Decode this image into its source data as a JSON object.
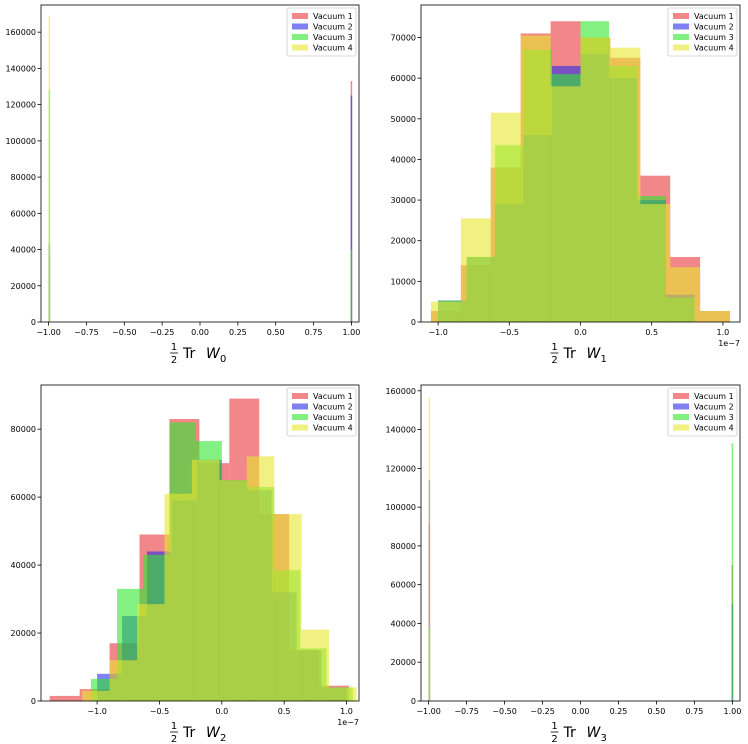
{
  "colors": {
    "Vacuum 1": "#e8373b",
    "Vacuum 2": "#2b2be8",
    "Vacuum 3": "#2fe82f",
    "Vacuum 4": "#e8e82f"
  },
  "chart_data": [
    {
      "type": "bar",
      "title": "",
      "xlabel": "½ Tr W₀",
      "xlabel_parts": {
        "frac_num": "1",
        "frac_den": "2",
        "text": "Tr",
        "var": "W",
        "sub": "0"
      },
      "xlim": [
        -1.05,
        1.05
      ],
      "ylim": [
        0,
        175000
      ],
      "xticks": [
        -1.0,
        -0.75,
        -0.5,
        -0.25,
        0.0,
        0.25,
        0.5,
        0.75,
        1.0
      ],
      "xtick_labels": [
        "−1.00",
        "−0.75",
        "−0.50",
        "−0.25",
        "0.00",
        "0.25",
        "0.50",
        "0.75",
        "1.00"
      ],
      "yticks": [
        0,
        20000,
        40000,
        60000,
        80000,
        100000,
        120000,
        140000,
        160000
      ],
      "ytick_labels": [
        "0",
        "20000",
        "40000",
        "60000",
        "80000",
        "100000",
        "120000",
        "140000",
        "160000"
      ],
      "offset_label": "",
      "legend": [
        "Vacuum 1",
        "Vacuum 2",
        "Vacuum 3",
        "Vacuum 4"
      ],
      "legend_position": "top-right",
      "series": [
        {
          "name": "Vacuum 1",
          "bins": [
            [
              -1.0,
              -0.995,
              37000
            ],
            [
              0.995,
              1.0,
              133000
            ]
          ]
        },
        {
          "name": "Vacuum 2",
          "bins": [
            [
              -1.0,
              -0.995,
              43000
            ],
            [
              0.995,
              1.0,
              125000
            ]
          ]
        },
        {
          "name": "Vacuum 3",
          "bins": [
            [
              -1.0,
              -0.995,
              128000
            ],
            [
              0.995,
              1.0,
              40000
            ]
          ]
        },
        {
          "name": "Vacuum 4",
          "bins": [
            [
              -1.0,
              -0.995,
              169000
            ],
            [
              0.995,
              1.0,
              0
            ]
          ]
        }
      ]
    },
    {
      "type": "bar",
      "title": "",
      "xlabel": "½ Tr W₁",
      "xlabel_parts": {
        "frac_num": "1",
        "frac_den": "2",
        "text": "Tr",
        "var": "W",
        "sub": "1"
      },
      "xlim": [
        -1.12,
        1.12
      ],
      "ylim": [
        0,
        78000
      ],
      "xticks": [
        -1.0,
        -0.5,
        0.0,
        0.5,
        1.0
      ],
      "xtick_labels": [
        "−1.0",
        "−0.5",
        "0.0",
        "0.5",
        "1.0"
      ],
      "yticks": [
        0,
        10000,
        20000,
        30000,
        40000,
        50000,
        60000,
        70000
      ],
      "ytick_labels": [
        "0",
        "10000",
        "20000",
        "30000",
        "40000",
        "50000",
        "60000",
        "70000"
      ],
      "offset_label": "1e−7",
      "legend": [
        "Vacuum 1",
        "Vacuum 2",
        "Vacuum 3",
        "Vacuum 4"
      ],
      "legend_position": "top-right",
      "series": [
        {
          "name": "Vacuum 1",
          "edges": [
            -1.05,
            -0.84,
            -0.63,
            -0.42,
            -0.21,
            0.0,
            0.21,
            0.42,
            0.63,
            0.84,
            1.05
          ],
          "counts": [
            2700,
            14000,
            38000,
            71000,
            74000,
            70000,
            65000,
            36000,
            16000,
            2700
          ]
        },
        {
          "name": "Vacuum 2",
          "edges": [
            -1.0,
            -0.8,
            -0.6,
            -0.4,
            -0.2,
            0.0,
            0.2,
            0.4,
            0.6,
            0.8,
            1.0
          ],
          "counts": [
            5300,
            16000,
            29000,
            46000,
            63000,
            66000,
            60000,
            30000,
            6700,
            0
          ]
        },
        {
          "name": "Vacuum 3",
          "edges": [
            -1.0,
            -0.8,
            -0.6,
            -0.4,
            -0.2,
            0.0,
            0.2,
            0.4,
            0.6,
            0.8,
            1.0
          ],
          "counts": [
            5300,
            16000,
            43500,
            67000,
            61000,
            74000,
            63000,
            31000,
            6000,
            0
          ]
        },
        {
          "name": "Vacuum 4",
          "edges": [
            -1.05,
            -0.84,
            -0.63,
            -0.42,
            -0.21,
            0.0,
            0.21,
            0.42,
            0.63,
            0.84,
            1.05
          ],
          "counts": [
            5000,
            25500,
            51500,
            70500,
            58000,
            70000,
            67500,
            29000,
            13500,
            2700
          ]
        }
      ]
    },
    {
      "type": "bar",
      "title": "",
      "xlabel": "½ Tr W₂",
      "xlabel_parts": {
        "frac_num": "1",
        "frac_den": "2",
        "text": "Tr",
        "var": "W",
        "sub": "2"
      },
      "xlim": [
        -1.45,
        1.1
      ],
      "ylim": [
        0,
        93000
      ],
      "xticks": [
        -1.0,
        -0.5,
        0.0,
        0.5,
        1.0
      ],
      "xtick_labels": [
        "−1.0",
        "−0.5",
        "0.0",
        "0.5",
        "1.0"
      ],
      "yticks": [
        0,
        20000,
        40000,
        60000,
        80000
      ],
      "ytick_labels": [
        "0",
        "20000",
        "40000",
        "60000",
        "80000"
      ],
      "offset_label": "1e−7",
      "legend": [
        "Vacuum 1",
        "Vacuum 2",
        "Vacuum 3",
        "Vacuum 4"
      ],
      "legend_position": "top-right",
      "series": [
        {
          "name": "Vacuum 1",
          "edges": [
            -1.38,
            -1.14,
            -0.9,
            -0.66,
            -0.42,
            -0.18,
            0.06,
            0.3,
            0.54,
            0.78,
            1.02
          ],
          "counts": [
            1500,
            3500,
            17000,
            49000,
            83000,
            70000,
            89000,
            55000,
            15000,
            4500
          ]
        },
        {
          "name": "Vacuum 2",
          "edges": [
            -1.0,
            -0.8,
            -0.6,
            -0.4,
            -0.2,
            0.0,
            0.2,
            0.4,
            0.6,
            0.8,
            1.0
          ],
          "counts": [
            8000,
            25000,
            44000,
            59000,
            71000,
            65000,
            62000,
            32000,
            15000,
            4000
          ]
        },
        {
          "name": "Vacuum 3",
          "edges": [
            -1.05,
            -0.84,
            -0.63,
            -0.42,
            -0.21,
            0.0,
            0.21,
            0.42,
            0.63,
            0.84,
            1.05
          ],
          "counts": [
            6500,
            33000,
            43000,
            82000,
            76500,
            65000,
            63000,
            38500,
            15500,
            4000
          ]
        },
        {
          "name": "Vacuum 4",
          "edges": [
            -1.12,
            -0.9,
            -0.68,
            -0.46,
            -0.24,
            -0.02,
            0.2,
            0.42,
            0.64,
            0.86,
            1.08
          ],
          "counts": [
            3000,
            12000,
            28500,
            61000,
            71000,
            65000,
            72000,
            55000,
            21000,
            4000
          ]
        }
      ]
    },
    {
      "type": "bar",
      "title": "",
      "xlabel": "½ Tr W₃",
      "xlabel_parts": {
        "frac_num": "1",
        "frac_den": "2",
        "text": "Tr",
        "var": "W",
        "sub": "3"
      },
      "xlim": [
        -1.05,
        1.05
      ],
      "ylim": [
        0,
        163000
      ],
      "xticks": [
        -1.0,
        -0.75,
        -0.5,
        -0.25,
        0.0,
        0.25,
        0.5,
        0.75,
        1.0
      ],
      "xtick_labels": [
        "−1.00",
        "−0.75",
        "−0.50",
        "−0.25",
        "0.00",
        "0.25",
        "0.50",
        "0.75",
        "1.00"
      ],
      "yticks": [
        0,
        20000,
        40000,
        60000,
        80000,
        100000,
        120000,
        140000,
        160000
      ],
      "ytick_labels": [
        "0",
        "20000",
        "40000",
        "60000",
        "80000",
        "100000",
        "120000",
        "140000",
        "160000"
      ],
      "offset_label": "",
      "legend": [
        "Vacuum 1",
        "Vacuum 2",
        "Vacuum 3",
        "Vacuum 4"
      ],
      "legend_position": "top-right",
      "series": [
        {
          "name": "Vacuum 1",
          "bins": [
            [
              -1.0,
              -0.995,
              91000
            ],
            [
              0.995,
              1.0,
              70000
            ]
          ]
        },
        {
          "name": "Vacuum 2",
          "bins": [
            [
              -1.0,
              -0.995,
              114000
            ],
            [
              0.995,
              1.0,
              50000
            ]
          ]
        },
        {
          "name": "Vacuum 3",
          "bins": [
            [
              -1.0,
              -0.995,
              38000
            ],
            [
              0.995,
              1.0,
              133000
            ]
          ]
        },
        {
          "name": "Vacuum 4",
          "bins": [
            [
              -1.0,
              -0.995,
              156000
            ],
            [
              0.995,
              1.0,
              0
            ]
          ]
        }
      ]
    }
  ]
}
